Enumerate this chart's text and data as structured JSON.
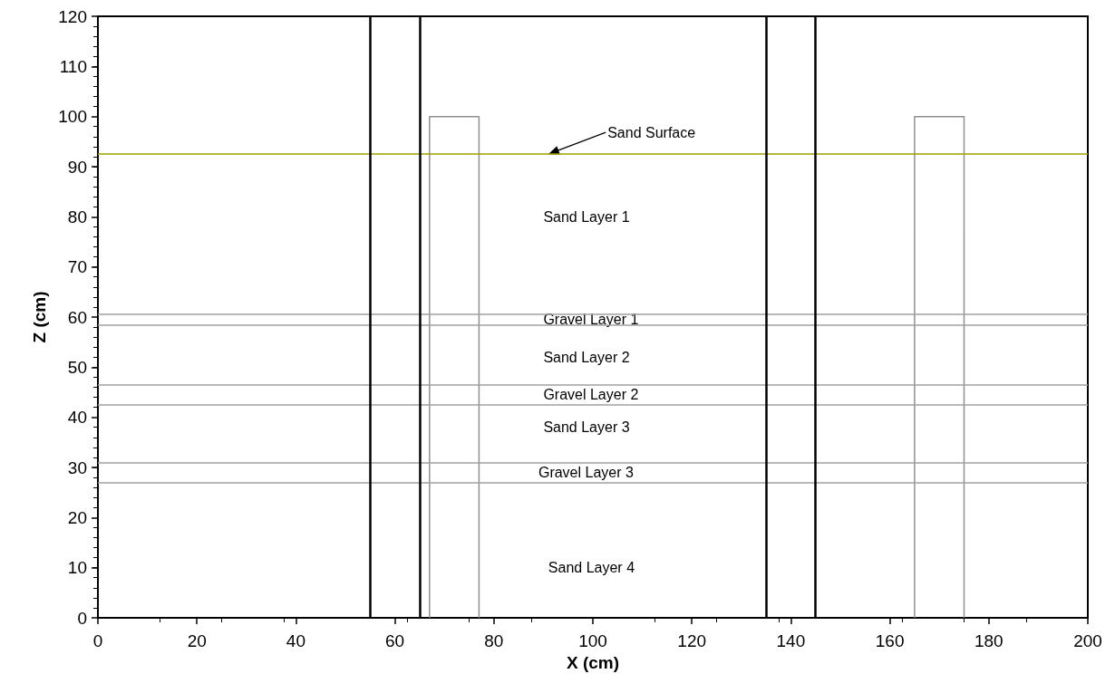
{
  "chart_data": {
    "type": "line",
    "xlabel": "X (cm)",
    "ylabel": "Z (cm)",
    "xlim": [
      0,
      200
    ],
    "xticks": [
      0,
      20,
      40,
      60,
      80,
      100,
      120,
      140,
      160,
      180,
      200
    ],
    "ylim": [
      0,
      120
    ],
    "yticks": [
      0,
      10,
      20,
      30,
      40,
      50,
      60,
      70,
      80,
      90,
      100,
      110,
      120
    ],
    "series": [
      {
        "color": "#909090",
        "x": [
          67,
          67,
          77,
          77
        ],
        "values": [
          0,
          100,
          100,
          0
        ]
      },
      {
        "color": "#909090",
        "x": [
          165,
          165,
          175,
          175
        ],
        "values": [
          0,
          100,
          100,
          0
        ]
      }
    ],
    "ref_lines": [
      {
        "axis": "y",
        "value": 92.5,
        "label": "Sand Surface",
        "color": "#a0a000"
      },
      {
        "axis": "y",
        "value": 60.5,
        "color": "#a0a0a0"
      },
      {
        "axis": "y",
        "value": 58.5,
        "color": "#a0a0a0"
      },
      {
        "axis": "y",
        "value": 46.5,
        "color": "#a0a0a0"
      },
      {
        "axis": "y",
        "value": 42.5,
        "color": "#a0a0a0"
      },
      {
        "axis": "y",
        "value": 31,
        "color": "#a0a0a0"
      },
      {
        "axis": "y",
        "value": 27,
        "color": "#a0a0a0"
      },
      {
        "axis": "x",
        "value": 55,
        "color": "#000000"
      },
      {
        "axis": "x",
        "value": 65,
        "color": "#000000"
      },
      {
        "axis": "x",
        "value": 135,
        "color": "#000000"
      },
      {
        "axis": "x",
        "value": 145,
        "color": "#000000"
      }
    ],
    "annotations": [
      "Sand Layer 1",
      "Gravel Layer 1",
      "Sand Layer 2",
      "Gravel Layer 2",
      "Sand Layer 3",
      "Gravel Layer 3",
      "Sand Layer 4"
    ],
    "grid": false,
    "marker": "none"
  }
}
